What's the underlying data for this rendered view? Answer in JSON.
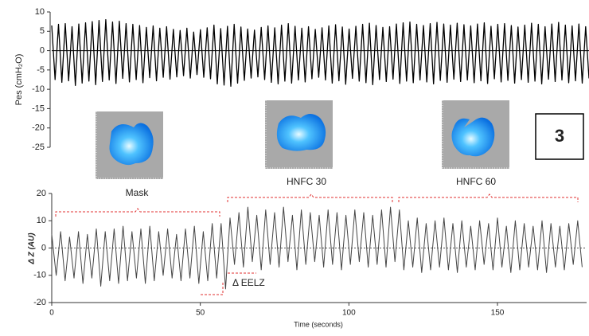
{
  "chart_data": [
    {
      "type": "line",
      "y_label": "Pes (cmH₂O)",
      "ylim": [
        -25,
        10
      ],
      "yticks": [
        10,
        5,
        0,
        -5,
        -10,
        -15,
        -20,
        -25
      ],
      "color": "#000000",
      "annotations": [
        "3"
      ],
      "values": [
        6.5,
        -7.5,
        6.8,
        -8.2,
        7,
        -7.8,
        6.2,
        -9,
        6.9,
        -8.4,
        7.2,
        -7.9,
        7.5,
        -8.8,
        7.8,
        -8,
        8,
        -7.6,
        7.4,
        -8.5,
        7.6,
        -7.2,
        7,
        -8.1,
        6.8,
        -7.5,
        6.5,
        -8.3,
        6,
        -7,
        6.4,
        -7.8,
        5.8,
        -6.9,
        6.2,
        -7.4,
        5.5,
        -6.8,
        5.2,
        -6.5,
        5.8,
        -7.1,
        4.8,
        -6.2,
        5.4,
        -6.9,
        5.9,
        -7.3,
        6.6,
        -8.6,
        5.7,
        -8.9,
        6.3,
        -9.2,
        6.8,
        -8.4,
        6.1,
        -7.7,
        5.6,
        -7.1,
        5.3,
        -6.8,
        6,
        -7.5,
        6.4,
        -8.2,
        5.9,
        -8.6,
        6.6,
        -7.9,
        7,
        -8.4,
        6.3,
        -7.6,
        5.8,
        -8.1,
        6.2,
        -7.3,
        5.5,
        -6.9,
        5.9,
        -7.6,
        6.4,
        -8.4,
        6.7,
        -7.8,
        6.1,
        -8.7,
        5.6,
        -7.2,
        6.3,
        -7.9,
        6.8,
        -8.3,
        7.1,
        -8.8,
        6.5,
        -7.5,
        6,
        -8,
        6.2,
        -7.4,
        6.9,
        -8.5,
        7.2,
        -7.9,
        7.4,
        -8.3,
        6.8,
        -7.6,
        6.5,
        -8.1,
        7,
        -8.6,
        7.3,
        -7.7,
        6.9,
        -8.2,
        6.6,
        -7.4,
        7.1,
        -8,
        6.7,
        -7.6,
        6.4,
        -8.3,
        6.9,
        -7.8,
        7.2,
        -8.5,
        6.3,
        -7.3,
        6.8,
        -8.1,
        7,
        -7.7,
        6.5,
        -8.4,
        6.1,
        -7.5,
        6.6,
        -8.2,
        7.1,
        -7.9,
        6.8,
        -8.6,
        6.2,
        -7.4,
        6.9,
        -8,
        7.3,
        -7.6,
        6.6,
        -8.3,
        6.4,
        -7.8,
        6.9,
        -8.4,
        6.2,
        -7.2
      ]
    },
    {
      "type": "line",
      "y_label": "Δ Z (AU)",
      "x_label": "Time (seconds)",
      "xlim": [
        0,
        180
      ],
      "xticks": [
        0,
        50,
        100,
        150
      ],
      "ylim": [
        -20,
        20
      ],
      "yticks": [
        20,
        10,
        0,
        -10,
        -20
      ],
      "color": "#444444",
      "annotations": [
        "Mask",
        "HNFC 30",
        "HNFC 60",
        "Δ EELZ"
      ],
      "x": [
        0,
        1.5,
        3,
        4.5,
        6,
        7.5,
        9,
        10.5,
        12,
        13.5,
        15,
        16.5,
        18,
        19.5,
        21,
        22.5,
        24,
        25.5,
        27,
        28.5,
        30,
        31.5,
        33,
        34.5,
        36,
        37.5,
        39,
        40.5,
        42,
        43.5,
        45,
        46.5,
        48,
        49.5,
        51,
        52.5,
        54,
        55.5,
        57,
        58.5,
        60,
        61.5,
        63,
        64.5,
        66,
        67.5,
        69,
        70.5,
        72,
        73.5,
        75,
        76.5,
        78,
        79.5,
        81,
        82.5,
        84,
        85.5,
        87,
        88.5,
        90,
        91.5,
        93,
        94.5,
        96,
        97.5,
        99,
        100.5,
        102,
        103.5,
        105,
        106.5,
        108,
        109.5,
        111,
        112.5,
        114,
        115.5,
        117,
        118.5,
        120,
        121.5,
        123,
        124.5,
        126,
        127.5,
        129,
        130.5,
        132,
        133.5,
        135,
        136.5,
        138,
        139.5,
        141,
        142.5,
        144,
        145.5,
        147,
        148.5,
        150,
        151.5,
        153,
        154.5,
        156,
        157.5,
        159,
        160.5,
        162,
        163.5,
        165,
        166.5,
        168,
        169.5,
        171,
        172.5,
        174,
        175.5,
        177,
        178.5
      ],
      "values": [
        5,
        -10,
        6,
        -12,
        4,
        -11,
        6,
        -13,
        5,
        -11,
        7,
        -14,
        6,
        -12,
        7,
        -13,
        8,
        -12,
        6,
        -11,
        7,
        -13,
        8,
        -12,
        6,
        -10,
        7,
        -11,
        5,
        -12,
        7,
        -11,
        8,
        -13,
        6,
        -12,
        9,
        -11,
        9,
        -15,
        11,
        -6,
        13,
        -7,
        15,
        -5,
        12,
        -8,
        14,
        -6,
        13,
        -7,
        15,
        -5,
        12,
        -8,
        14,
        -6,
        13,
        -5,
        12,
        -7,
        14,
        -6,
        13,
        -8,
        12,
        -6,
        14,
        -5,
        13,
        -7,
        12,
        -6,
        14,
        -7,
        15,
        -5,
        14,
        -8,
        10,
        -7,
        11,
        -9,
        9,
        -8,
        10,
        -7,
        11,
        -8,
        9,
        -9,
        10,
        -7,
        8,
        -8,
        10,
        -6,
        9,
        -8,
        11,
        -7,
        8,
        -9,
        10,
        -8,
        9,
        -7,
        8,
        -8,
        10,
        -9,
        9,
        -7,
        8,
        -8,
        9,
        -6,
        10,
        -7
      ]
    }
  ]
}
